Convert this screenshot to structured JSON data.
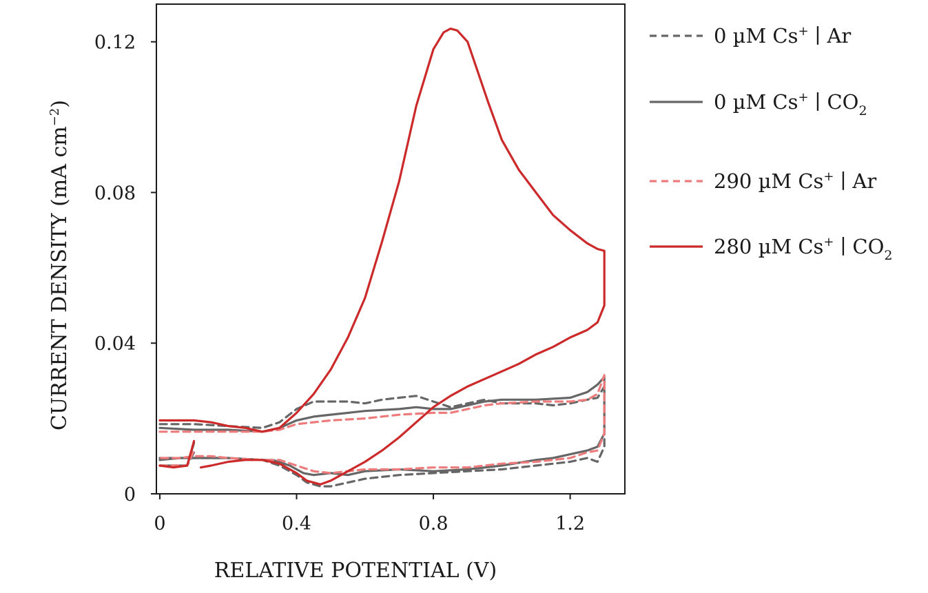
{
  "chart_data": {
    "type": "line",
    "title": "",
    "xlabel": "RELATIVE POTENTIAL (V)",
    "ylabel_main": "CURRENT DENSITY (mA cm",
    "ylabel_sup": "−2",
    "ylabel_end": ")",
    "xlim": [
      -0.01,
      1.36
    ],
    "ylim": [
      0,
      0.13
    ],
    "xticks": [
      {
        "value": 0,
        "label": "0"
      },
      {
        "value": 0.4,
        "label": "0.4"
      },
      {
        "value": 0.8,
        "label": "0.8"
      },
      {
        "value": 1.2,
        "label": "1.2"
      }
    ],
    "yticks": [
      {
        "value": 0,
        "label": "0"
      },
      {
        "value": 0.04,
        "label": "0.04"
      },
      {
        "value": 0.08,
        "label": "0.08"
      },
      {
        "value": 0.12,
        "label": "0.12"
      }
    ],
    "legend_position": "right",
    "series": [
      {
        "name": "0 µM Cs+ | Ar",
        "label_main": "0 µM Cs",
        "label_sup": "+",
        "label_sep": " ∣ Ar",
        "label_sub": "",
        "color": "#666666",
        "dash": true,
        "segments": [
          [
            [
              0,
              0.0185
            ],
            [
              0.1,
              0.0185
            ],
            [
              0.2,
              0.018
            ],
            [
              0.3,
              0.0175
            ],
            [
              0.35,
              0.019
            ],
            [
              0.4,
              0.0225
            ],
            [
              0.45,
              0.0245
            ],
            [
              0.5,
              0.0245
            ],
            [
              0.55,
              0.0245
            ],
            [
              0.6,
              0.024
            ],
            [
              0.65,
              0.025
            ],
            [
              0.7,
              0.0255
            ],
            [
              0.75,
              0.026
            ],
            [
              0.8,
              0.0245
            ],
            [
              0.85,
              0.023
            ],
            [
              0.9,
              0.024
            ],
            [
              0.95,
              0.025
            ],
            [
              1.0,
              0.024
            ],
            [
              1.05,
              0.024
            ],
            [
              1.1,
              0.024
            ],
            [
              1.15,
              0.0235
            ],
            [
              1.2,
              0.024
            ],
            [
              1.25,
              0.025
            ],
            [
              1.28,
              0.0255
            ],
            [
              1.3,
              0.0285
            ],
            [
              1.3,
              0.0125
            ],
            [
              1.28,
              0.0085
            ],
            [
              1.25,
              0.0095
            ],
            [
              1.2,
              0.0085
            ],
            [
              1.1,
              0.0075
            ],
            [
              1.0,
              0.0065
            ],
            [
              0.9,
              0.006
            ],
            [
              0.8,
              0.0055
            ],
            [
              0.7,
              0.005
            ],
            [
              0.6,
              0.004
            ],
            [
              0.55,
              0.003
            ],
            [
              0.5,
              0.002
            ],
            [
              0.47,
              0.002
            ],
            [
              0.43,
              0.003
            ],
            [
              0.4,
              0.005
            ],
            [
              0.35,
              0.0075
            ],
            [
              0.3,
              0.009
            ],
            [
              0.2,
              0.0095
            ],
            [
              0.1,
              0.0095
            ],
            [
              0.06,
              0.0095
            ],
            [
              0,
              0.0095
            ]
          ],
          [
            [
              0,
              0.0075
            ],
            [
              0.04,
              0.0075
            ],
            [
              0.08,
              0.0075
            ],
            [
              0.1,
              0.011
            ]
          ]
        ]
      },
      {
        "name": "0 µM Cs+ | CO2",
        "label_main": "0 µM Cs",
        "label_sup": "+",
        "label_sep": " ∣ CO",
        "label_sub": "2",
        "color": "#666666",
        "dash": false,
        "segments": [
          [
            [
              0,
              0.0175
            ],
            [
              0.1,
              0.017
            ],
            [
              0.2,
              0.017
            ],
            [
              0.3,
              0.0165
            ],
            [
              0.35,
              0.0175
            ],
            [
              0.4,
              0.0195
            ],
            [
              0.45,
              0.0205
            ],
            [
              0.5,
              0.021
            ],
            [
              0.6,
              0.022
            ],
            [
              0.7,
              0.0225
            ],
            [
              0.75,
              0.023
            ],
            [
              0.8,
              0.0225
            ],
            [
              0.85,
              0.0225
            ],
            [
              0.9,
              0.0235
            ],
            [
              0.95,
              0.0245
            ],
            [
              1.0,
              0.025
            ],
            [
              1.1,
              0.025
            ],
            [
              1.2,
              0.0255
            ],
            [
              1.25,
              0.027
            ],
            [
              1.28,
              0.029
            ],
            [
              1.3,
              0.031
            ],
            [
              1.3,
              0.016
            ],
            [
              1.28,
              0.0125
            ],
            [
              1.25,
              0.0115
            ],
            [
              1.2,
              0.0105
            ],
            [
              1.15,
              0.0095
            ],
            [
              1.1,
              0.009
            ],
            [
              1.0,
              0.0075
            ],
            [
              0.9,
              0.0065
            ],
            [
              0.8,
              0.006
            ],
            [
              0.7,
              0.0065
            ],
            [
              0.6,
              0.006
            ],
            [
              0.55,
              0.005
            ],
            [
              0.5,
              0.0055
            ],
            [
              0.45,
              0.005
            ],
            [
              0.42,
              0.0055
            ],
            [
              0.38,
              0.0075
            ],
            [
              0.33,
              0.009
            ],
            [
              0.3,
              0.009
            ],
            [
              0.2,
              0.0095
            ],
            [
              0.15,
              0.0095
            ],
            [
              0.1,
              0.0095
            ],
            [
              0.06,
              0.0095
            ],
            [
              0,
              0.009
            ]
          ],
          [
            [
              0,
              0.0075
            ],
            [
              0.04,
              0.0075
            ],
            [
              0.08,
              0.0075
            ],
            [
              0.1,
              0.0135
            ]
          ]
        ]
      },
      {
        "name": "290 µM Cs+ | Ar",
        "label_main": "290 µM Cs",
        "label_sup": "+",
        "label_sep": " ∣ Ar",
        "label_sub": "",
        "color": "#ee7b7b",
        "dash": true,
        "segments": [
          [
            [
              0,
              0.0165
            ],
            [
              0.1,
              0.0165
            ],
            [
              0.2,
              0.0165
            ],
            [
              0.3,
              0.0165
            ],
            [
              0.35,
              0.017
            ],
            [
              0.4,
              0.0185
            ],
            [
              0.45,
              0.019
            ],
            [
              0.5,
              0.0195
            ],
            [
              0.6,
              0.02
            ],
            [
              0.7,
              0.021
            ],
            [
              0.8,
              0.0215
            ],
            [
              0.85,
              0.0215
            ],
            [
              0.9,
              0.0225
            ],
            [
              0.95,
              0.0235
            ],
            [
              1.0,
              0.024
            ],
            [
              1.1,
              0.0245
            ],
            [
              1.2,
              0.0245
            ],
            [
              1.25,
              0.025
            ],
            [
              1.28,
              0.0265
            ],
            [
              1.3,
              0.0315
            ],
            [
              1.3,
              0.016
            ],
            [
              1.28,
              0.0115
            ],
            [
              1.25,
              0.011
            ],
            [
              1.2,
              0.0095
            ],
            [
              1.1,
              0.0085
            ],
            [
              1.0,
              0.008
            ],
            [
              0.9,
              0.007
            ],
            [
              0.8,
              0.007
            ],
            [
              0.7,
              0.0065
            ],
            [
              0.6,
              0.0065
            ],
            [
              0.55,
              0.006
            ],
            [
              0.5,
              0.0055
            ],
            [
              0.45,
              0.006
            ],
            [
              0.4,
              0.0075
            ],
            [
              0.35,
              0.009
            ],
            [
              0.3,
              0.009
            ],
            [
              0.2,
              0.0095
            ],
            [
              0.15,
              0.01
            ],
            [
              0.1,
              0.01
            ],
            [
              0.06,
              0.0095
            ],
            [
              0,
              0.0095
            ]
          ],
          [
            [
              0,
              0.0075
            ],
            [
              0.04,
              0.0075
            ],
            [
              0.08,
              0.0075
            ],
            [
              0.1,
              0.0115
            ]
          ]
        ]
      },
      {
        "name": "280 µM Cs+ | CO2",
        "label_main": "280 µM Cs",
        "label_sup": "+",
        "label_sep": " ∣ CO",
        "label_sub": "2",
        "color": "#cc2a2a",
        "dash": false,
        "segments": [
          [
            [
              0,
              0.0195
            ],
            [
              0.1,
              0.0195
            ],
            [
              0.15,
              0.019
            ],
            [
              0.2,
              0.018
            ],
            [
              0.25,
              0.0175
            ],
            [
              0.3,
              0.0165
            ],
            [
              0.35,
              0.0175
            ],
            [
              0.4,
              0.0215
            ],
            [
              0.45,
              0.0265
            ],
            [
              0.5,
              0.033
            ],
            [
              0.55,
              0.0415
            ],
            [
              0.6,
              0.052
            ],
            [
              0.65,
              0.067
            ],
            [
              0.7,
              0.083
            ],
            [
              0.75,
              0.103
            ],
            [
              0.8,
              0.118
            ],
            [
              0.83,
              0.1225
            ],
            [
              0.85,
              0.1235
            ],
            [
              0.87,
              0.123
            ],
            [
              0.9,
              0.12
            ],
            [
              0.93,
              0.112
            ],
            [
              0.96,
              0.104
            ],
            [
              1.0,
              0.094
            ],
            [
              1.05,
              0.086
            ],
            [
              1.1,
              0.08
            ],
            [
              1.15,
              0.074
            ],
            [
              1.2,
              0.07
            ],
            [
              1.25,
              0.0665
            ],
            [
              1.28,
              0.065
            ],
            [
              1.3,
              0.0645
            ],
            [
              1.3,
              0.05
            ],
            [
              1.28,
              0.0455
            ],
            [
              1.25,
              0.0435
            ],
            [
              1.2,
              0.0415
            ],
            [
              1.15,
              0.039
            ],
            [
              1.1,
              0.037
            ],
            [
              1.05,
              0.0345
            ],
            [
              1.0,
              0.0325
            ],
            [
              0.95,
              0.0305
            ],
            [
              0.9,
              0.0285
            ],
            [
              0.85,
              0.026
            ],
            [
              0.8,
              0.023
            ],
            [
              0.75,
              0.019
            ],
            [
              0.7,
              0.015
            ],
            [
              0.65,
              0.0115
            ],
            [
              0.6,
              0.0085
            ],
            [
              0.55,
              0.006
            ],
            [
              0.5,
              0.0035
            ],
            [
              0.47,
              0.0025
            ],
            [
              0.43,
              0.0035
            ],
            [
              0.4,
              0.0055
            ],
            [
              0.35,
              0.008
            ],
            [
              0.3,
              0.009
            ],
            [
              0.25,
              0.009
            ],
            [
              0.2,
              0.0085
            ],
            [
              0.15,
              0.0075
            ],
            [
              0.12,
              0.007
            ]
          ],
          [
            [
              0,
              0.0075
            ],
            [
              0.04,
              0.007
            ],
            [
              0.08,
              0.0075
            ],
            [
              0.1,
              0.014
            ]
          ]
        ]
      }
    ]
  }
}
